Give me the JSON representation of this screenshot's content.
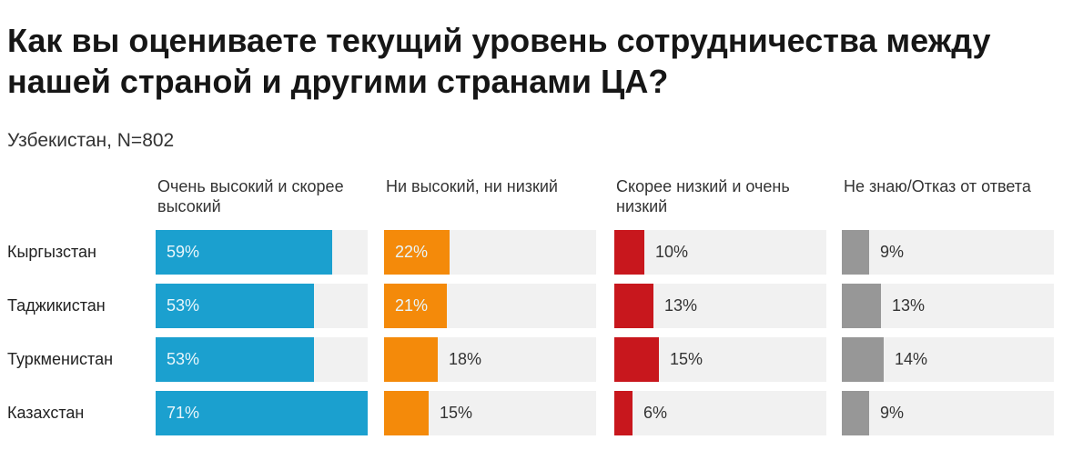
{
  "chart_data": {
    "type": "bar",
    "title": "Как вы оцениваете текущий уровень сотрудничества между нашей страной и другими странами ЦА?",
    "subtitle": "Узбекистан, N=802",
    "categories": [
      "Кыргызстан",
      "Таджикистан",
      "Туркменистан",
      "Казахстан"
    ],
    "value_max": 71,
    "series": [
      {
        "name": "Очень высокий и скорее высокий",
        "color": "#1ba0cf",
        "values": [
          59,
          53,
          53,
          71
        ],
        "labels": [
          "59%",
          "53%",
          "53%",
          "71%"
        ],
        "label_inside": [
          true,
          true,
          true,
          true
        ]
      },
      {
        "name": "Ни высокий, ни низкий",
        "color": "#f48a0a",
        "values": [
          22,
          21,
          18,
          15
        ],
        "labels": [
          "22%",
          "21%",
          "18%",
          "15%"
        ],
        "label_inside": [
          true,
          true,
          false,
          false
        ]
      },
      {
        "name": "Скорее низкий и очень низкий",
        "color": "#c8171d",
        "values": [
          10,
          13,
          15,
          6
        ],
        "labels": [
          "10%",
          "13%",
          "15%",
          "6%"
        ],
        "label_inside": [
          false,
          false,
          false,
          false
        ]
      },
      {
        "name": "Не знаю/Отказ от ответа",
        "color": "#979797",
        "values": [
          9,
          13,
          14,
          9
        ],
        "labels": [
          "9%",
          "13%",
          "14%",
          "9%"
        ],
        "label_inside": [
          false,
          false,
          false,
          false
        ]
      }
    ]
  }
}
